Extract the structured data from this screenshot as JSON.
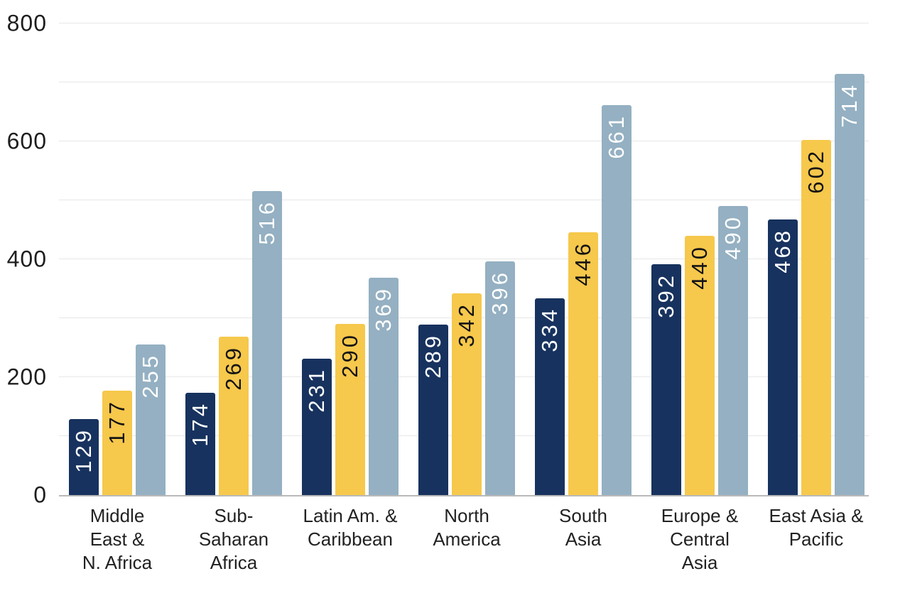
{
  "chart_data": {
    "type": "bar",
    "title": "",
    "xlabel": "",
    "ylabel": "",
    "categories": [
      "Middle East & N. Africa",
      "Sub-Saharan Africa",
      "Latin Am. & Caribbean",
      "North America",
      "South Asia",
      "Europe & Central Asia",
      "East Asia & Pacific"
    ],
    "category_lines": [
      [
        "Middle",
        "East &",
        "N. Africa"
      ],
      [
        "Sub-",
        "Saharan",
        "Africa"
      ],
      [
        "Latin Am. &",
        "Caribbean"
      ],
      [
        "North",
        "America"
      ],
      [
        "South",
        "Asia"
      ],
      [
        "Europe &",
        "Central",
        "Asia"
      ],
      [
        "East Asia &",
        "Pacific"
      ]
    ],
    "series": [
      {
        "color": "#17325e",
        "label_color": "#ffffff",
        "values": [
          129,
          174,
          231,
          289,
          334,
          392,
          468
        ]
      },
      {
        "color": "#f6c84c",
        "label_color": "#141414",
        "values": [
          177,
          269,
          290,
          342,
          446,
          440,
          602
        ]
      },
      {
        "color": "#94b0c2",
        "label_color": "#ffffff",
        "values": [
          255,
          516,
          369,
          396,
          661,
          490,
          714
        ]
      }
    ],
    "ylim": [
      0,
      800
    ],
    "yticks": [
      0,
      200,
      400,
      600,
      800
    ],
    "gridline_step": 100,
    "grid": true,
    "legend_position": "none",
    "value_labels": "rotated-90-inside-bar-top",
    "colors": {
      "gridline": "#e7e7e7",
      "axis_line": "#b9b9b9",
      "tick_text": "#1e1e1e",
      "category_text": "#222222",
      "background": "#ffffff"
    }
  }
}
